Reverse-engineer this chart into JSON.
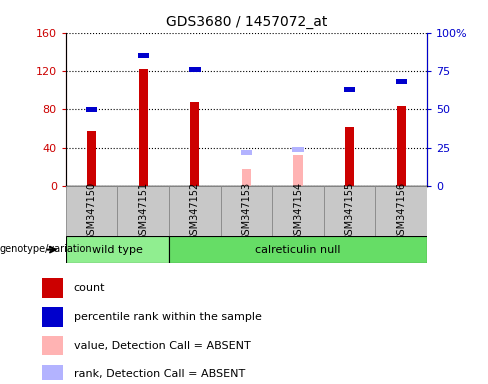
{
  "title": "GDS3680 / 1457072_at",
  "samples": [
    "GSM347150",
    "GSM347151",
    "GSM347152",
    "GSM347153",
    "GSM347154",
    "GSM347155",
    "GSM347156"
  ],
  "count_values": [
    58,
    122,
    88,
    null,
    null,
    62,
    84
  ],
  "percentile_values": [
    50,
    85,
    76,
    null,
    null,
    63,
    68
  ],
  "absent_value_values": [
    null,
    null,
    null,
    18,
    33,
    null,
    null
  ],
  "absent_rank_values": [
    null,
    null,
    null,
    22,
    24,
    null,
    null
  ],
  "ylim_left": [
    0,
    160
  ],
  "ylim_right": [
    0,
    100
  ],
  "yticks_left": [
    0,
    40,
    80,
    120,
    160
  ],
  "yticks_right": [
    0,
    25,
    50,
    75,
    100
  ],
  "yticklabels_left": [
    "0",
    "40",
    "80",
    "120",
    "160"
  ],
  "yticklabels_right": [
    "0",
    "25",
    "50",
    "75",
    "100%"
  ],
  "group_wild_label": "wild type",
  "group_cal_label": "calreticulin null",
  "genotype_label": "genotype/variation",
  "count_color": "#cc0000",
  "percentile_color": "#0000cc",
  "absent_value_color": "#ffb3b3",
  "absent_rank_color": "#b3b3ff",
  "wild_type_bg": "#90ee90",
  "calreticulin_bg": "#66dd66",
  "grey_box_bg": "#c8c8c8",
  "legend_items": [
    {
      "label": "count",
      "color": "#cc0000"
    },
    {
      "label": "percentile rank within the sample",
      "color": "#0000cc"
    },
    {
      "label": "value, Detection Call = ABSENT",
      "color": "#ffb3b3"
    },
    {
      "label": "rank, Detection Call = ABSENT",
      "color": "#b3b3ff"
    }
  ]
}
